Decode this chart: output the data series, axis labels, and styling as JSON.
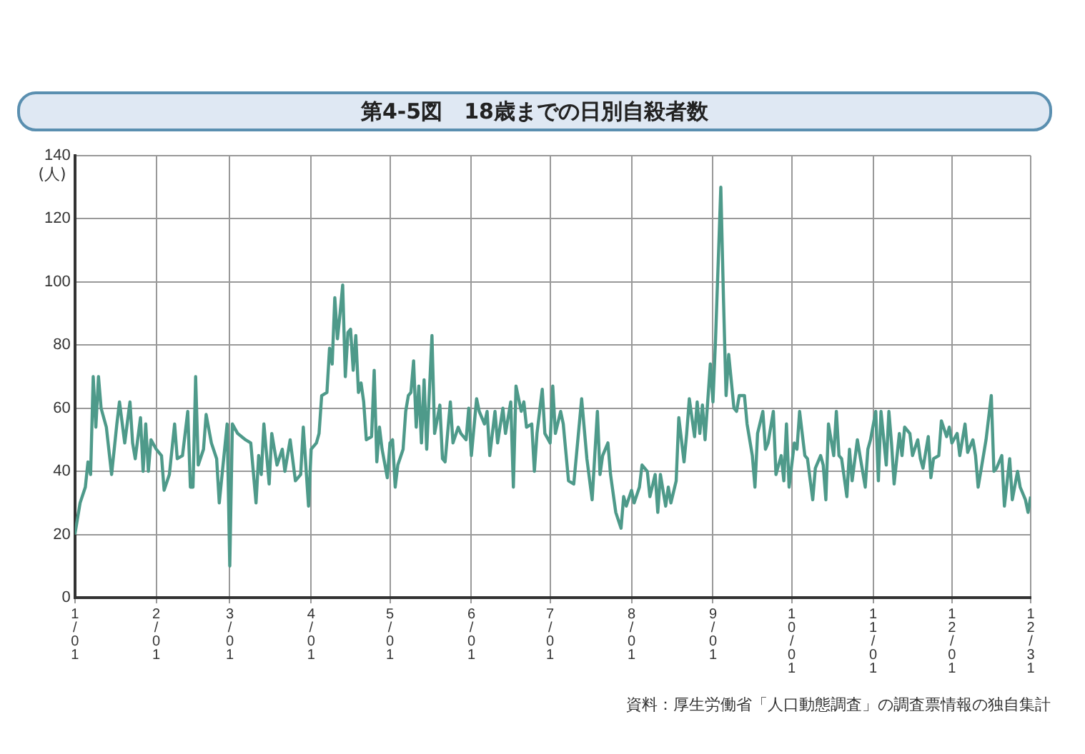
{
  "chart_data": {
    "type": "line",
    "title": "第4-5図　18歳までの日別自殺者数",
    "ylabel": "(人)",
    "annotations": [
      "資料：厚生労働省「人口動態調査」の調査票情報の独自集計"
    ],
    "x": [
      "--01-01",
      "--01-03",
      "--01-05",
      "--01-06",
      "--01-07",
      "--01-08",
      "--01-09",
      "--01-10",
      "--01-11",
      "--01-13",
      "--01-15",
      "--01-17",
      "--01-18",
      "--01-20",
      "--01-22",
      "--01-23",
      "--01-24",
      "--01-26",
      "--01-27",
      "--01-28",
      "--01-29",
      "--01-30",
      "--02-01",
      "--02-03",
      "--02-04",
      "--02-06",
      "--02-08",
      "--02-09",
      "--02-11",
      "--02-13",
      "--02-14",
      "--02-15",
      "--02-16",
      "--02-17",
      "--02-19",
      "--02-20",
      "--02-22",
      "--02-24",
      "--02-25",
      "--02-28",
      "--03-01",
      "--03-02",
      "--03-04",
      "--03-07",
      "--03-09",
      "--03-11",
      "--03-12",
      "--03-13",
      "--03-14",
      "--03-16",
      "--03-17",
      "--03-19",
      "--03-21",
      "--03-22",
      "--03-24",
      "--03-26",
      "--03-28",
      "--03-29",
      "--03-31",
      "--04-01",
      "--04-03",
      "--04-04",
      "--04-05",
      "--04-07",
      "--04-08",
      "--04-09",
      "--04-10",
      "--04-11",
      "--04-12",
      "--04-13",
      "--04-14",
      "--04-15",
      "--04-16",
      "--04-17",
      "--04-18",
      "--04-19",
      "--04-20",
      "--04-21",
      "--04-22",
      "--04-24",
      "--04-25",
      "--04-26",
      "--04-27",
      "--04-28",
      "--04-30",
      "--05-01",
      "--05-02",
      "--05-03",
      "--05-04",
      "--05-06",
      "--05-07",
      "--05-08",
      "--05-09",
      "--05-10",
      "--05-11",
      "--05-12",
      "--05-13",
      "--05-14",
      "--05-15",
      "--05-17",
      "--05-18",
      "--05-20",
      "--05-21",
      "--05-22",
      "--05-24",
      "--05-25",
      "--05-27",
      "--05-28",
      "--05-30",
      "--05-31",
      "--06-01",
      "--06-03",
      "--06-04",
      "--06-06",
      "--06-07",
      "--06-08",
      "--06-10",
      "--06-11",
      "--06-13",
      "--06-14",
      "--06-16",
      "--06-17",
      "--06-18",
      "--06-20",
      "--06-21",
      "--06-22",
      "--06-24",
      "--06-25",
      "--06-26",
      "--06-28",
      "--06-29",
      "--07-01",
      "--07-02",
      "--07-03",
      "--07-05",
      "--07-06",
      "--07-08",
      "--07-10",
      "--07-13",
      "--07-15",
      "--07-17",
      "--07-19",
      "--07-20",
      "--07-21",
      "--07-23",
      "--07-24",
      "--07-26",
      "--07-28",
      "--07-29",
      "--07-30",
      "--08-01",
      "--08-02",
      "--08-04",
      "--08-05",
      "--08-07",
      "--08-08",
      "--08-10",
      "--08-11",
      "--08-12",
      "--08-14",
      "--08-15",
      "--08-16",
      "--08-18",
      "--08-19",
      "--08-21",
      "--08-22",
      "--08-23",
      "--08-25",
      "--08-26",
      "--08-27",
      "--08-28",
      "--08-29",
      "--08-31",
      "--09-01",
      "--09-02",
      "--09-04",
      "--09-05",
      "--09-06",
      "--09-07",
      "--09-09",
      "--09-10",
      "--09-11",
      "--09-13",
      "--09-14",
      "--09-16",
      "--09-17",
      "--09-18",
      "--09-20",
      "--09-21",
      "--09-22",
      "--09-24",
      "--09-25",
      "--09-27",
      "--09-28",
      "--09-29",
      "--09-30",
      "--10-02",
      "--10-03",
      "--10-04",
      "--10-06",
      "--10-07",
      "--10-09",
      "--10-10",
      "--10-12",
      "--10-13",
      "--10-14",
      "--10-15",
      "--10-17",
      "--10-18",
      "--10-19",
      "--10-20",
      "--10-22",
      "--10-23",
      "--10-24",
      "--10-26",
      "--10-27",
      "--10-29",
      "--10-30",
      "--10-31",
      "--11-02",
      "--11-03",
      "--11-04",
      "--11-06",
      "--11-07",
      "--11-08",
      "--11-09",
      "--11-11",
      "--11-12",
      "--11-13",
      "--11-15",
      "--11-16",
      "--11-18",
      "--11-19",
      "--11-20",
      "--11-22",
      "--11-23",
      "--11-24",
      "--11-26",
      "--11-27",
      "--11-29",
      "--11-30",
      "--12-01",
      "--12-03",
      "--12-04",
      "--12-06",
      "--12-07",
      "--12-09",
      "--12-10",
      "--12-11",
      "--12-13",
      "--12-14",
      "--12-16",
      "--12-17",
      "--12-18",
      "--12-20",
      "--12-21",
      "--12-23",
      "--12-24",
      "--12-26",
      "--12-27",
      "--12-29",
      "--12-30",
      "--12-31"
    ],
    "values": [
      20,
      30,
      35,
      43,
      39,
      70,
      54,
      70,
      60,
      54,
      39,
      55,
      62,
      49,
      62,
      49,
      44,
      57,
      40,
      55,
      40,
      50,
      47,
      45,
      34,
      39,
      55,
      44,
      45,
      59,
      35,
      35,
      70,
      42,
      47,
      58,
      49,
      44,
      30,
      55,
      10,
      55,
      52,
      50,
      49,
      30,
      45,
      39,
      55,
      36,
      52,
      42,
      47,
      40,
      50,
      37,
      39,
      54,
      29,
      47,
      49,
      52,
      64,
      65,
      79,
      74,
      95,
      82,
      90,
      99,
      70,
      84,
      85,
      72,
      83,
      65,
      68,
      62,
      50,
      51,
      72,
      43,
      54,
      47,
      38,
      49,
      50,
      35,
      42,
      47,
      59,
      64,
      65,
      75,
      54,
      67,
      49,
      69,
      47,
      83,
      52,
      61,
      44,
      43,
      62,
      49,
      54,
      52,
      50,
      60,
      45,
      63,
      59,
      55,
      59,
      45,
      59,
      49,
      60,
      52,
      62,
      35,
      67,
      59,
      62,
      54,
      55,
      40,
      52,
      66,
      52,
      49,
      67,
      52,
      59,
      55,
      37,
      36,
      63,
      44,
      31,
      59,
      39,
      45,
      49,
      39,
      27,
      22,
      32,
      29,
      34,
      30,
      35,
      42,
      40,
      32,
      39,
      27,
      39,
      29,
      35,
      30,
      37,
      57,
      43,
      52,
      63,
      51,
      62,
      52,
      61,
      50,
      74,
      62,
      82,
      130,
      95,
      64,
      77,
      60,
      59,
      64,
      64,
      55,
      45,
      35,
      52,
      59,
      47,
      49,
      59,
      39,
      45,
      37,
      55,
      35,
      49,
      47,
      59,
      45,
      44,
      31,
      41,
      45,
      42,
      31,
      55,
      45,
      59,
      45,
      44,
      32,
      47,
      37,
      50,
      45,
      35,
      47,
      50,
      59,
      37,
      59,
      42,
      59,
      49,
      36,
      52,
      45,
      54,
      52,
      45,
      50,
      44,
      41,
      51,
      38,
      44,
      45,
      56,
      51,
      54,
      49,
      52,
      45,
      55,
      46,
      50,
      45,
      35,
      45,
      50,
      64,
      40,
      41,
      45,
      29,
      44,
      31,
      40,
      35,
      31,
      27,
      32
    ],
    "color": "#4e9a8a",
    "xlim": [
      "--01-01",
      "--12-31"
    ],
    "xticks": [
      {
        "value": "--01-01",
        "label": "1/01"
      },
      {
        "value": "--02-01",
        "label": "2/01"
      },
      {
        "value": "--03-01",
        "label": "3/01"
      },
      {
        "value": "--04-01",
        "label": "4/01"
      },
      {
        "value": "--05-01",
        "label": "5/01"
      },
      {
        "value": "--06-01",
        "label": "6/01"
      },
      {
        "value": "--07-01",
        "label": "7/01"
      },
      {
        "value": "--08-01",
        "label": "8/01"
      },
      {
        "value": "--09-01",
        "label": "9/01"
      },
      {
        "value": "--10-01",
        "label": "10/01"
      },
      {
        "value": "--11-01",
        "label": "11/01"
      },
      {
        "value": "--12-01",
        "label": "12/01"
      },
      {
        "value": "--12-31",
        "label": "12/31"
      }
    ],
    "ylim": [
      0,
      140
    ],
    "yticks": [
      0,
      20,
      40,
      60,
      80,
      100,
      120,
      140
    ],
    "grid": true,
    "legend": false,
    "marker": "none",
    "line_style": "solid"
  }
}
